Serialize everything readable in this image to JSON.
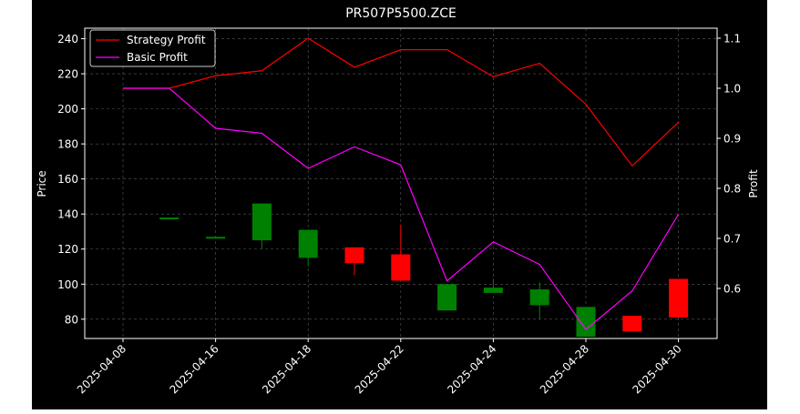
{
  "chart_data": {
    "type": "candlestick+line",
    "title": "PR507P5500.ZCE",
    "xlabel": "",
    "ylabel_left": "Price",
    "ylabel_right": "Profit",
    "ylim_left": [
      69,
      246
    ],
    "ylim_right": [
      0.5,
      1.12
    ],
    "yticks_left": [
      80,
      100,
      120,
      140,
      160,
      180,
      200,
      220,
      240
    ],
    "yticks_right": [
      0.6,
      0.7,
      0.8,
      0.9,
      1.0,
      1.1
    ],
    "x_dates": [
      "2025-04-08",
      "2025-04-11",
      "2025-04-16",
      "2025-04-17",
      "2025-04-18",
      "2025-04-21",
      "2025-04-22",
      "2025-04-23",
      "2025-04-24",
      "2025-04-25",
      "2025-04-28",
      "2025-04-29",
      "2025-04-30"
    ],
    "xtick_labels": [
      "2025-04-08",
      "2025-04-16",
      "2025-04-18",
      "2025-04-22",
      "2025-04-24",
      "2025-04-28",
      "2025-04-30"
    ],
    "xtick_indices": [
      0,
      2,
      4,
      6,
      8,
      10,
      12
    ],
    "grid": true,
    "legend_position": "top-left",
    "colors": {
      "up": "#008000",
      "down": "#ff0000",
      "strategy": "#ff0000",
      "basic": "#ff00ff",
      "grid": "#808080"
    },
    "candles": [
      {
        "date": "2025-04-11",
        "open": 137,
        "close": 138,
        "high": 138,
        "low": 137
      },
      {
        "date": "2025-04-16",
        "open": 126,
        "close": 127,
        "high": 127,
        "low": 126
      },
      {
        "date": "2025-04-17",
        "open": 125,
        "close": 146,
        "high": 146,
        "low": 120
      },
      {
        "date": "2025-04-18",
        "open": 115,
        "close": 131,
        "high": 131,
        "low": 110
      },
      {
        "date": "2025-04-21",
        "open": 121,
        "close": 112,
        "high": 121,
        "low": 105
      },
      {
        "date": "2025-04-22",
        "open": 117,
        "close": 102,
        "high": 134,
        "low": 102
      },
      {
        "date": "2025-04-23",
        "open": 85,
        "close": 100,
        "high": 100,
        "low": 85
      },
      {
        "date": "2025-04-24",
        "open": 95,
        "close": 98,
        "high": 103,
        "low": 95
      },
      {
        "date": "2025-04-25",
        "open": 88,
        "close": 97,
        "high": 101,
        "low": 80
      },
      {
        "date": "2025-04-28",
        "open": 70,
        "close": 87,
        "high": 87,
        "low": 70
      },
      {
        "date": "2025-04-29",
        "open": 82,
        "close": 73,
        "high": 82,
        "low": 73
      },
      {
        "date": "2025-04-30",
        "open": 103,
        "close": 81,
        "high": 103,
        "low": 81
      }
    ],
    "series": [
      {
        "name": "Strategy Profit",
        "axis": "right",
        "values": [
          1.0,
          1.0,
          1.025,
          1.035,
          1.1,
          1.042,
          1.077,
          1.077,
          1.023,
          1.05,
          0.968,
          0.845,
          0.932
        ]
      },
      {
        "name": "Basic Profit",
        "axis": "right",
        "values": [
          1.0,
          1.0,
          0.92,
          0.91,
          0.84,
          0.883,
          0.847,
          0.615,
          0.693,
          0.648,
          0.518,
          0.595,
          0.748
        ]
      }
    ]
  }
}
